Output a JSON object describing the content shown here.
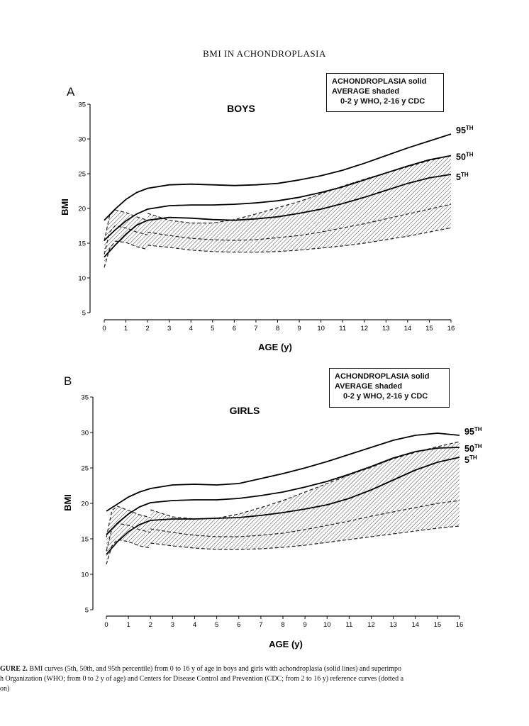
{
  "header": "BMI IN ACHONDROPLASIA",
  "caption": {
    "label": "GURE 2.",
    "line1": "BMI curves (5th, 50th, and 95th percentile) from 0 to 16 y of age in boys and girls with achondroplasia (solid lines) and superimpo",
    "line2": "h Organization (WHO; from 0 to 2 y of age) and Centers for Disease Control and Prevention (CDC; from 2 to 16 y) reference curves (dotted a",
    "line3": "on)"
  },
  "chart_data": [
    {
      "type": "line",
      "panel_label": "A",
      "title": "BOYS",
      "xlabel": "AGE (y)",
      "ylabel": "BMI",
      "xlim": [
        0,
        16
      ],
      "ylim": [
        5,
        35
      ],
      "x_ticks": [
        "0",
        "1",
        "2",
        "3",
        "4",
        "5",
        "6",
        "7",
        "8",
        "9",
        "10",
        "11",
        "12",
        "13",
        "14",
        "15",
        "16"
      ],
      "y_ticks": [
        "5",
        "10",
        "15",
        "20",
        "25",
        "30",
        "35"
      ],
      "legend": {
        "line1": "ACHONDROPLASIA solid",
        "line2": "AVERAGE shaded",
        "line3": "0-2 y WHO, 2-16 y CDC",
        "placement": "top-right"
      },
      "grid": false,
      "series": [
        {
          "name": "95TH",
          "style": "solid",
          "x": [
            0,
            0.5,
            1,
            1.5,
            2,
            3,
            4,
            5,
            6,
            7,
            8,
            9,
            10,
            11,
            12,
            13,
            14,
            15,
            16
          ],
          "y": [
            18.3,
            19.9,
            21.3,
            22.3,
            22.9,
            23.4,
            23.5,
            23.4,
            23.3,
            23.4,
            23.6,
            24.1,
            24.7,
            25.5,
            26.5,
            27.6,
            28.7,
            29.7,
            30.7
          ]
        },
        {
          "name": "50TH",
          "style": "solid",
          "x": [
            0,
            0.5,
            1,
            1.5,
            2,
            3,
            4,
            5,
            6,
            7,
            8,
            9,
            10,
            11,
            12,
            13,
            14,
            15,
            16
          ],
          "y": [
            15.4,
            16.9,
            18.2,
            19.2,
            19.9,
            20.4,
            20.5,
            20.5,
            20.6,
            20.8,
            21.1,
            21.6,
            22.3,
            23.1,
            24.1,
            25.1,
            26.1,
            27.0,
            27.6
          ]
        },
        {
          "name": "5TH",
          "style": "solid",
          "x": [
            0,
            0.5,
            1,
            1.5,
            2,
            3,
            4,
            5,
            6,
            7,
            8,
            9,
            10,
            11,
            12,
            13,
            14,
            15,
            16
          ],
          "y": [
            13.0,
            14.7,
            16.3,
            17.6,
            18.3,
            18.7,
            18.6,
            18.4,
            18.3,
            18.5,
            18.8,
            19.3,
            19.9,
            20.7,
            21.6,
            22.6,
            23.6,
            24.4,
            24.9
          ]
        }
      ],
      "reference": [
        {
          "name": "WHO 95th",
          "x": [
            0,
            0.25,
            0.5,
            1,
            1.5,
            2
          ],
          "y": [
            15.3,
            19.0,
            19.8,
            19.4,
            18.8,
            18.3
          ]
        },
        {
          "name": "WHO 50th",
          "x": [
            0,
            0.25,
            0.5,
            1,
            1.5,
            2
          ],
          "y": [
            13.4,
            16.6,
            17.5,
            17.2,
            16.6,
            16.2
          ]
        },
        {
          "name": "WHO 5th",
          "x": [
            0,
            0.25,
            0.5,
            1,
            1.5,
            2
          ],
          "y": [
            11.5,
            14.2,
            15.3,
            15.1,
            14.5,
            14.1
          ]
        },
        {
          "name": "CDC 95th",
          "x": [
            2,
            3,
            4,
            5,
            6,
            7,
            8,
            9,
            10,
            11,
            12,
            13,
            14,
            15,
            16
          ],
          "y": [
            19.3,
            18.3,
            17.9,
            17.9,
            18.4,
            19.2,
            20.1,
            21.0,
            22.1,
            23.2,
            24.2,
            25.1,
            26.0,
            26.9,
            27.6
          ]
        },
        {
          "name": "CDC 50th",
          "x": [
            2,
            3,
            4,
            5,
            6,
            7,
            8,
            9,
            10,
            11,
            12,
            13,
            14,
            15,
            16
          ],
          "y": [
            16.6,
            16.1,
            15.7,
            15.5,
            15.4,
            15.5,
            15.8,
            16.1,
            16.6,
            17.2,
            17.8,
            18.5,
            19.2,
            19.9,
            20.6
          ]
        },
        {
          "name": "CDC 5th",
          "x": [
            2,
            3,
            4,
            5,
            6,
            7,
            8,
            9,
            10,
            11,
            12,
            13,
            14,
            15,
            16
          ],
          "y": [
            14.7,
            14.4,
            14.0,
            13.8,
            13.7,
            13.7,
            13.8,
            14.0,
            14.3,
            14.6,
            15.0,
            15.5,
            16.0,
            16.6,
            17.2
          ]
        }
      ]
    },
    {
      "type": "line",
      "panel_label": "B",
      "title": "GIRLS",
      "xlabel": "AGE (y)",
      "ylabel": "BMI",
      "xlim": [
        0,
        16
      ],
      "ylim": [
        5,
        35
      ],
      "x_ticks": [
        "0",
        "1",
        "2",
        "3",
        "4",
        "5",
        "6",
        "7",
        "8",
        "9",
        "10",
        "11",
        "12",
        "13",
        "14",
        "15",
        "16"
      ],
      "y_ticks": [
        "5",
        "10",
        "15",
        "20",
        "25",
        "30",
        "35"
      ],
      "legend": {
        "line1": "ACHONDROPLASIA solid",
        "line2": "AVERAGE shaded",
        "line3": "0-2 y WHO, 2-16 y CDC",
        "placement": "top-right"
      },
      "grid": false,
      "series": [
        {
          "name": "95TH",
          "style": "solid",
          "x": [
            0,
            0.5,
            1,
            1.5,
            2,
            3,
            4,
            5,
            6,
            7,
            8,
            9,
            10,
            11,
            12,
            13,
            14,
            15,
            16
          ],
          "y": [
            18.9,
            19.9,
            20.9,
            21.6,
            22.1,
            22.6,
            22.7,
            22.6,
            22.8,
            23.5,
            24.2,
            25.0,
            25.9,
            26.9,
            27.9,
            28.9,
            29.6,
            29.9,
            29.6
          ]
        },
        {
          "name": "50TH",
          "style": "solid",
          "x": [
            0,
            0.5,
            1,
            1.5,
            2,
            3,
            4,
            5,
            6,
            7,
            8,
            9,
            10,
            11,
            12,
            13,
            14,
            15,
            16
          ],
          "y": [
            15.6,
            17.2,
            18.5,
            19.5,
            20.1,
            20.4,
            20.5,
            20.5,
            20.7,
            21.1,
            21.6,
            22.3,
            23.1,
            24.1,
            25.2,
            26.4,
            27.3,
            27.8,
            27.9
          ]
        },
        {
          "name": "5TH",
          "style": "solid",
          "x": [
            0,
            0.5,
            1,
            1.5,
            2,
            3,
            4,
            5,
            6,
            7,
            8,
            9,
            10,
            11,
            12,
            13,
            14,
            15,
            16
          ],
          "y": [
            12.8,
            14.6,
            16.0,
            17.0,
            17.6,
            17.8,
            17.8,
            17.9,
            18.0,
            18.3,
            18.7,
            19.2,
            19.8,
            20.7,
            21.9,
            23.3,
            24.7,
            25.8,
            26.5
          ]
        }
      ],
      "reference": [
        {
          "name": "WHO 95th",
          "x": [
            0,
            0.25,
            0.5,
            1,
            1.5,
            2
          ],
          "y": [
            15.2,
            19.0,
            19.6,
            19.0,
            18.4,
            18.0
          ]
        },
        {
          "name": "WHO 50th",
          "x": [
            0,
            0.25,
            0.5,
            1,
            1.5,
            2
          ],
          "y": [
            13.3,
            16.4,
            17.2,
            16.9,
            16.3,
            15.9
          ]
        },
        {
          "name": "WHO 5th",
          "x": [
            0,
            0.25,
            0.5,
            1,
            1.5,
            2
          ],
          "y": [
            11.4,
            14.0,
            14.9,
            14.6,
            14.0,
            13.7
          ]
        },
        {
          "name": "CDC 95th",
          "x": [
            2,
            3,
            4,
            5,
            6,
            7,
            8,
            9,
            10,
            11,
            12,
            13,
            14,
            15,
            16
          ],
          "y": [
            19.1,
            18.1,
            17.8,
            17.9,
            18.5,
            19.4,
            20.4,
            21.6,
            22.8,
            24.0,
            25.1,
            26.3,
            27.2,
            28.0,
            28.7
          ]
        },
        {
          "name": "CDC 50th",
          "x": [
            2,
            3,
            4,
            5,
            6,
            7,
            8,
            9,
            10,
            11,
            12,
            13,
            14,
            15,
            16
          ],
          "y": [
            16.4,
            15.9,
            15.5,
            15.3,
            15.3,
            15.5,
            15.8,
            16.3,
            16.9,
            17.5,
            18.2,
            18.8,
            19.4,
            20.0,
            20.4
          ]
        },
        {
          "name": "CDC 5th",
          "x": [
            2,
            3,
            4,
            5,
            6,
            7,
            8,
            9,
            10,
            11,
            12,
            13,
            14,
            15,
            16
          ],
          "y": [
            14.4,
            14.0,
            13.7,
            13.5,
            13.5,
            13.6,
            13.8,
            14.1,
            14.5,
            14.9,
            15.3,
            15.7,
            16.1,
            16.5,
            16.8
          ]
        }
      ]
    }
  ]
}
